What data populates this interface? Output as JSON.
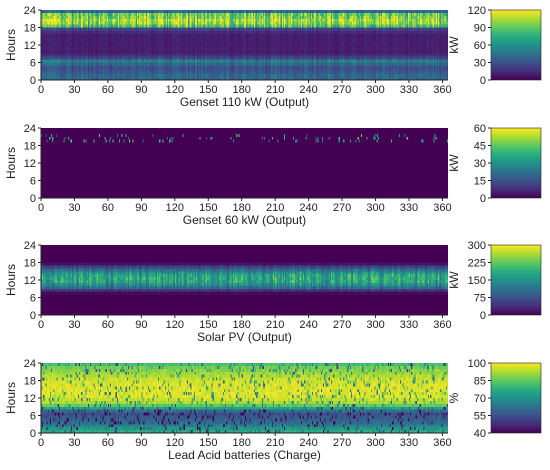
{
  "colors": {
    "viridis": [
      "#440154",
      "#472d7b",
      "#3b528b",
      "#2c728e",
      "#21918c",
      "#28ae80",
      "#5ec962",
      "#addc30",
      "#fde725"
    ],
    "axis": "#222222"
  },
  "chart_data": [
    {
      "type": "heatmap",
      "title": "Genset 110 kW (Output)",
      "ylabel": "Hours",
      "colorbar_label": "kW",
      "xlim": [
        0,
        365
      ],
      "ylim": [
        0,
        24
      ],
      "x_ticks": [
        "0",
        "30",
        "60",
        "90",
        "120",
        "150",
        "180",
        "210",
        "240",
        "270",
        "300",
        "330",
        "360"
      ],
      "y_ticks": [
        "0",
        "6",
        "12",
        "18",
        "24"
      ],
      "colorbar_range": [
        0,
        120
      ],
      "colorbar_ticks": [
        "0",
        "30",
        "60",
        "90",
        "120"
      ],
      "typical_by_hour": [
        40,
        40,
        35,
        30,
        30,
        40,
        50,
        25,
        15,
        10,
        10,
        10,
        10,
        10,
        10,
        10,
        15,
        25,
        85,
        100,
        105,
        95,
        90,
        40
      ]
    },
    {
      "type": "heatmap",
      "title": "Genset 60 kW (Output)",
      "ylabel": "Hours",
      "colorbar_label": "kW",
      "xlim": [
        0,
        365
      ],
      "ylim": [
        0,
        24
      ],
      "x_ticks": [
        "0",
        "30",
        "60",
        "90",
        "120",
        "150",
        "180",
        "210",
        "240",
        "270",
        "300",
        "330",
        "360"
      ],
      "y_ticks": [
        "0",
        "6",
        "12",
        "18",
        "24"
      ],
      "colorbar_range": [
        0,
        60
      ],
      "colorbar_ticks": [
        "0",
        "15",
        "30",
        "45",
        "60"
      ],
      "typical_by_hour": [
        0,
        0,
        0,
        0,
        0,
        0,
        0,
        0,
        0,
        0,
        0,
        0,
        0,
        0,
        0,
        0,
        0,
        0,
        0,
        5,
        5,
        3,
        0,
        0
      ]
    },
    {
      "type": "heatmap",
      "title": "Solar PV (Output)",
      "ylabel": "Hours",
      "colorbar_label": "kW",
      "xlim": [
        0,
        365
      ],
      "ylim": [
        0,
        24
      ],
      "x_ticks": [
        "0",
        "30",
        "60",
        "90",
        "120",
        "150",
        "180",
        "210",
        "240",
        "270",
        "300",
        "330",
        "360"
      ],
      "y_ticks": [
        "0",
        "6",
        "12",
        "18",
        "24"
      ],
      "colorbar_range": [
        0,
        300
      ],
      "colorbar_ticks": [
        "0",
        "75",
        "150",
        "225",
        "300"
      ],
      "typical_by_hour": [
        0,
        0,
        0,
        0,
        0,
        0,
        0,
        10,
        50,
        110,
        150,
        175,
        180,
        175,
        150,
        110,
        60,
        15,
        0,
        0,
        0,
        0,
        0,
        0
      ]
    },
    {
      "type": "heatmap",
      "title": "Lead Acid batteries (Charge)",
      "ylabel": "Hours",
      "colorbar_label": "%",
      "xlim": [
        0,
        365
      ],
      "ylim": [
        0,
        24
      ],
      "x_ticks": [
        "0",
        "30",
        "60",
        "90",
        "120",
        "150",
        "180",
        "210",
        "240",
        "270",
        "300",
        "330",
        "360"
      ],
      "y_ticks": [
        "0",
        "6",
        "12",
        "18",
        "24"
      ],
      "colorbar_range": [
        40,
        100
      ],
      "colorbar_ticks": [
        "40",
        "55",
        "70",
        "85",
        "100"
      ],
      "typical_by_hour": [
        80,
        75,
        70,
        65,
        62,
        60,
        58,
        65,
        78,
        88,
        95,
        98,
        100,
        100,
        100,
        100,
        100,
        99,
        98,
        96,
        94,
        92,
        90,
        85
      ]
    }
  ]
}
